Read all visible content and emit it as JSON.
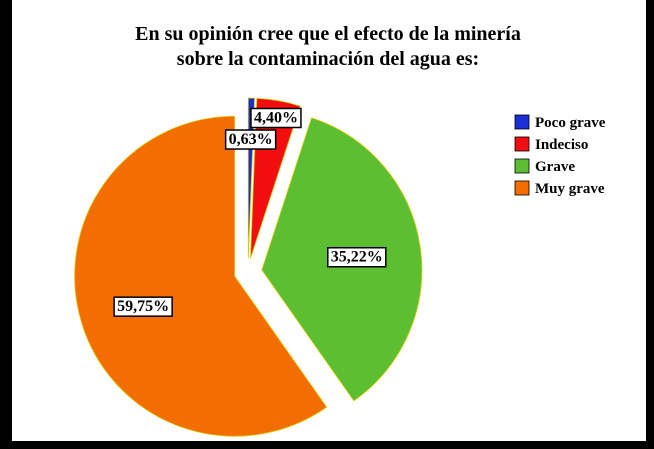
{
  "chart_data": {
    "type": "pie",
    "title": "En su opinión cree que el efecto de la minería sobre la contaminación del agua es:",
    "categories": [
      "Poco grave",
      "Indeciso",
      "Grave",
      "Muy grave"
    ],
    "values": [
      0.63,
      4.4,
      35.22,
      59.75
    ],
    "value_labels": [
      "0,63%",
      "4,40%",
      "35,22%",
      "59,75%"
    ],
    "colors": [
      "#1a2fd6",
      "#f20e0e",
      "#5cbf32",
      "#f46d00"
    ],
    "legend": "right"
  }
}
